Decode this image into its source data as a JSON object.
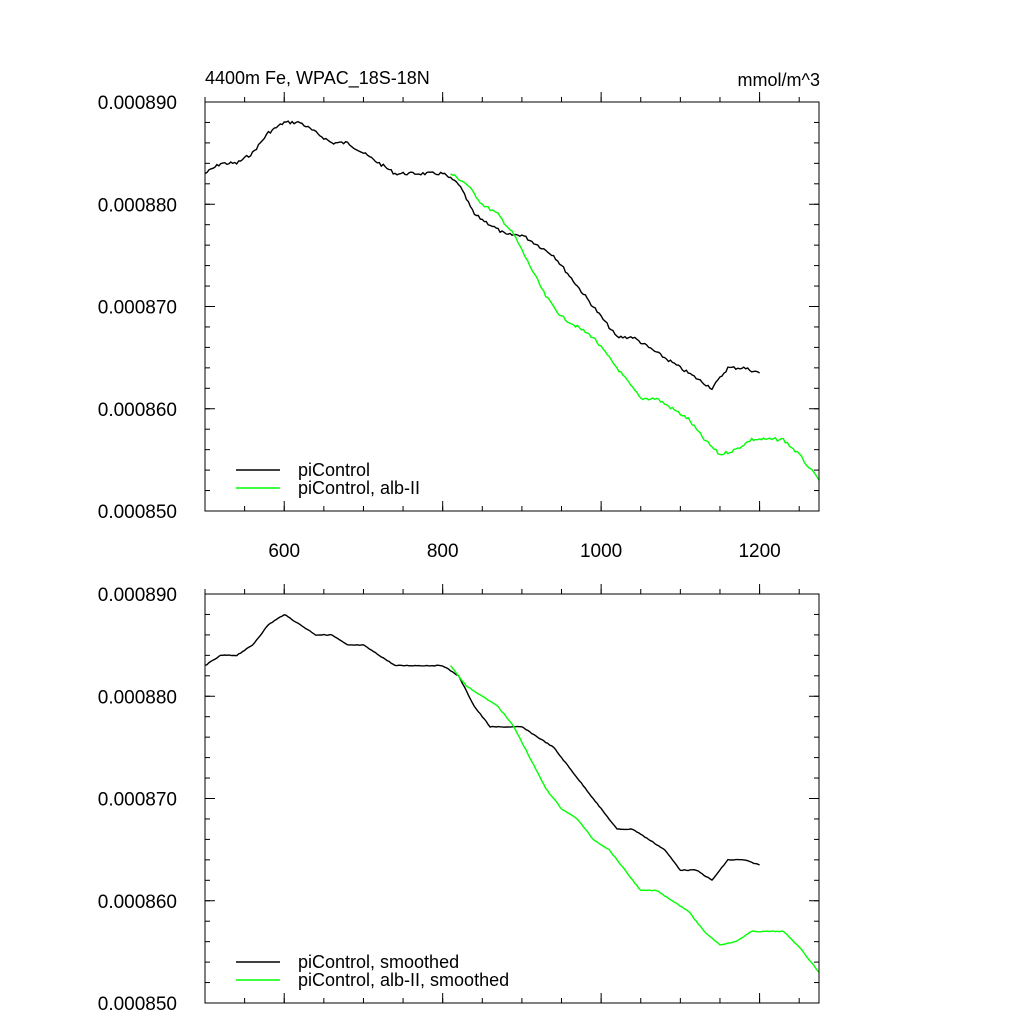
{
  "chart_data": [
    {
      "type": "line",
      "title_left": "4400m Fe, WPAC_18S-18N",
      "title_right": "mmol/m^3",
      "xlim": [
        500,
        1275
      ],
      "ylim": [
        0.00085,
        0.00089
      ],
      "xticks": [
        600,
        800,
        1000,
        1200
      ],
      "xtick_labels": [
        "600",
        "800",
        "1000",
        "1200"
      ],
      "yticks": [
        0.00085,
        0.00086,
        0.00087,
        0.00088,
        0.00089
      ],
      "ytick_labels": [
        "0.000850",
        "0.000860",
        "0.000870",
        "0.000880",
        "0.000890"
      ],
      "legend_position": "bottom-left",
      "series": [
        {
          "name": "piControl",
          "color": "#000000",
          "x": [
            500,
            520,
            540,
            560,
            580,
            600,
            620,
            640,
            660,
            680,
            700,
            720,
            740,
            760,
            780,
            800,
            820,
            840,
            860,
            880,
            900,
            920,
            940,
            960,
            980,
            1000,
            1020,
            1040,
            1060,
            1080,
            1100,
            1120,
            1140,
            1160,
            1180,
            1200
          ],
          "y": [
            0.000883,
            0.000884,
            0.000884,
            0.000885,
            0.000887,
            0.000888,
            0.000888,
            0.000887,
            0.000886,
            0.000886,
            0.000885,
            0.000884,
            0.000883,
            0.000883,
            0.000883,
            0.000883,
            0.000882,
            0.000879,
            0.000878,
            0.000877,
            0.000877,
            0.000876,
            0.000875,
            0.000873,
            0.000871,
            0.000869,
            0.000867,
            0.000867,
            0.000866,
            0.000865,
            0.000864,
            0.000863,
            0.000862,
            0.000864,
            0.000864,
            0.0008635
          ]
        },
        {
          "name": "piControl, alb-II",
          "color": "#00ff00",
          "x": [
            810,
            830,
            850,
            870,
            890,
            910,
            930,
            950,
            970,
            990,
            1010,
            1030,
            1050,
            1070,
            1090,
            1110,
            1130,
            1150,
            1170,
            1190,
            1210,
            1230,
            1250,
            1275
          ],
          "y": [
            0.000883,
            0.000882,
            0.00088,
            0.000879,
            0.000877,
            0.000874,
            0.000871,
            0.000869,
            0.000868,
            0.000867,
            0.000865,
            0.000863,
            0.000861,
            0.000861,
            0.00086,
            0.000859,
            0.000857,
            0.0008555,
            0.000856,
            0.000857,
            0.000857,
            0.000857,
            0.0008555,
            0.000853
          ]
        }
      ]
    },
    {
      "type": "line",
      "xlim": [
        500,
        1275
      ],
      "ylim": [
        0.00085,
        0.00089
      ],
      "yticks": [
        0.00085,
        0.00086,
        0.00087,
        0.00088,
        0.00089
      ],
      "ytick_labels": [
        "0.000850",
        "0.000860",
        "0.000870",
        "0.000880",
        "0.000890"
      ],
      "legend_position": "bottom-left",
      "series": [
        {
          "name": "piControl, smoothed",
          "color": "#000000",
          "x": [
            500,
            520,
            540,
            560,
            580,
            600,
            620,
            640,
            660,
            680,
            700,
            720,
            740,
            760,
            780,
            800,
            820,
            840,
            860,
            880,
            900,
            920,
            940,
            960,
            980,
            1000,
            1020,
            1040,
            1060,
            1080,
            1100,
            1120,
            1140,
            1160,
            1180,
            1200
          ],
          "y": [
            0.000883,
            0.000884,
            0.000884,
            0.000885,
            0.000887,
            0.000888,
            0.000887,
            0.000886,
            0.000886,
            0.000885,
            0.000885,
            0.000884,
            0.000883,
            0.000883,
            0.000883,
            0.000883,
            0.000882,
            0.000879,
            0.000877,
            0.000877,
            0.000877,
            0.000876,
            0.000875,
            0.000873,
            0.000871,
            0.000869,
            0.000867,
            0.000867,
            0.000866,
            0.000865,
            0.000863,
            0.000863,
            0.000862,
            0.000864,
            0.000864,
            0.0008635
          ]
        },
        {
          "name": "piControl, alb-II, smoothed",
          "color": "#00ff00",
          "x": [
            810,
            830,
            850,
            870,
            890,
            910,
            930,
            950,
            970,
            990,
            1010,
            1030,
            1050,
            1070,
            1090,
            1110,
            1130,
            1150,
            1170,
            1190,
            1210,
            1230,
            1250,
            1275
          ],
          "y": [
            0.000883,
            0.000881,
            0.00088,
            0.000879,
            0.000877,
            0.000874,
            0.000871,
            0.000869,
            0.000868,
            0.000866,
            0.000865,
            0.000863,
            0.000861,
            0.000861,
            0.00086,
            0.000859,
            0.000857,
            0.0008557,
            0.000856,
            0.000857,
            0.000857,
            0.000857,
            0.0008555,
            0.000853
          ]
        }
      ]
    }
  ]
}
